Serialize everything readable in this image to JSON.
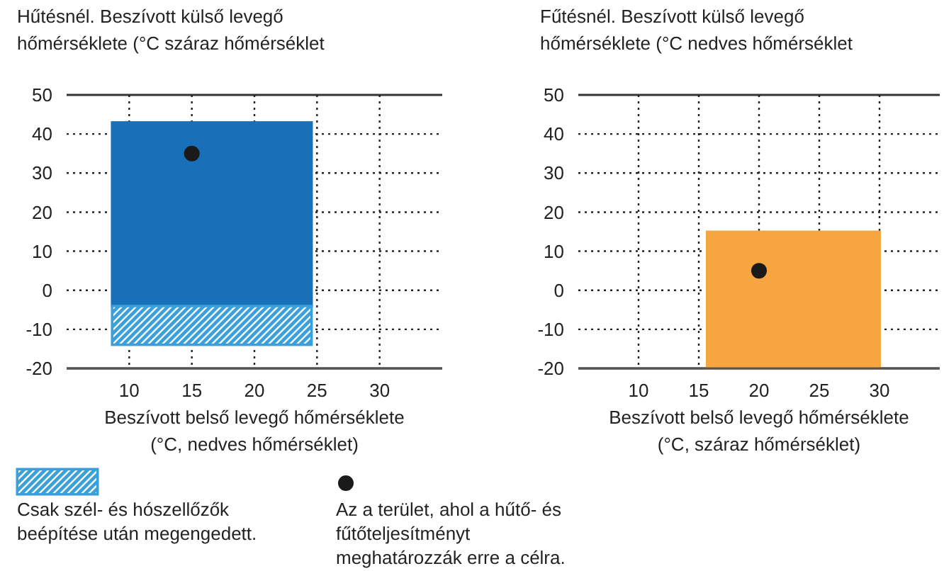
{
  "chart_data": [
    {
      "type": "bar",
      "title": "Hűtésnél. Beszívott külső levegő hőmérséklete (°C száraz hőmérséklet",
      "xlabel": "Beszívott belső levegő hőmérséklete (°C, nedves hőmérséklet)",
      "xlim": [
        5,
        35
      ],
      "xticks": [
        10,
        15,
        20,
        25,
        30
      ],
      "ylim": [
        -20,
        50
      ],
      "yticks": [
        -20,
        -10,
        0,
        10,
        20,
        30,
        40,
        50
      ],
      "grid": true,
      "legend": "bottom",
      "series": [
        {
          "color": "#1a70b8",
          "x": [
            16.6
          ],
          "base": [
            -4
          ],
          "values": [
            47
          ]
        },
        {
          "name": "Csak szél- és hószellőzők beépítése után megengedett.",
          "color": "#3aa0dc",
          "x": [
            16.6
          ],
          "base": [
            -14
          ],
          "values": [
            10
          ]
        },
        {
          "type": "scatter",
          "name": "Az a terület, ahol a hűtő- és fűtőteljesítményt meghatározzák erre a célra.",
          "color": "#1a1a1a",
          "x": [
            15
          ],
          "values": [
            35
          ]
        }
      ]
    },
    {
      "type": "bar",
      "title": "Fűtésnél. Beszívott külső levegő hőmérséklete (°C nedves hőmérséklet",
      "xlabel": "Beszívott belső levegő hőmérséklete (°C, száraz hőmérséklet)",
      "xlim": [
        5,
        35
      ],
      "xticks": [
        10,
        15,
        20,
        25,
        30
      ],
      "ylim": [
        -20,
        50
      ],
      "yticks": [
        -20,
        -10,
        0,
        10,
        20,
        30,
        40,
        50
      ],
      "grid": true,
      "series": [
        {
          "color": "#f7a541",
          "x": [
            22.85
          ],
          "base": [
            -20
          ],
          "values": [
            35
          ]
        },
        {
          "type": "scatter",
          "color": "#1a1a1a",
          "x": [
            20
          ],
          "values": [
            5
          ]
        }
      ]
    }
  ]
}
